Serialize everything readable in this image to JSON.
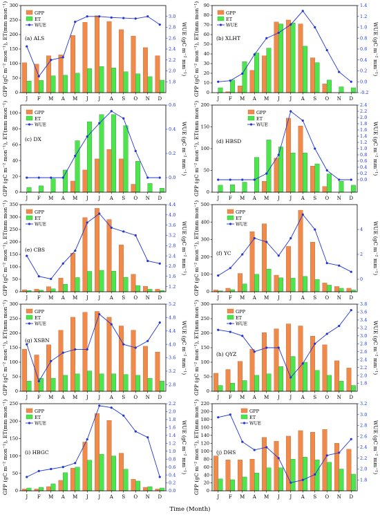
{
  "chart_data": [
    {
      "id": "als",
      "type": "bar",
      "panel_label": "(a) ALS",
      "categories": [
        "J",
        "F",
        "M",
        "A",
        "M",
        "J",
        "J",
        "A",
        "S",
        "O",
        "N",
        "D"
      ],
      "series": [
        {
          "name": "GPP",
          "values": [
            103,
            98,
            127,
            130,
            197,
            242,
            265,
            245,
            217,
            195,
            155,
            127
          ]
        },
        {
          "name": "ET",
          "values": [
            40,
            42,
            58,
            60,
            67,
            83,
            90,
            85,
            72,
            65,
            55,
            43
          ]
        },
        {
          "name": "WUE",
          "axis": "right",
          "values": [
            2.45,
            1.9,
            2.2,
            2.25,
            2.9,
            3.0,
            3.0,
            2.98,
            2.97,
            2.96,
            3.0,
            2.85
          ]
        }
      ],
      "ylabel": "GPP (gC m⁻² mon⁻¹), ET(mm mon⁻¹)",
      "y2label": "WUE (gC m⁻² mm⁻¹)",
      "ylim": [
        0,
        300
      ],
      "yticks": [
        0,
        50,
        100,
        150,
        200,
        250,
        300
      ],
      "y2lim": [
        1.6,
        3.2
      ],
      "y2ticks": [
        1.8,
        2.0,
        2.2,
        2.4,
        2.6,
        2.8,
        3.0
      ]
    },
    {
      "id": "xlht",
      "type": "bar",
      "panel_label": "(b) XLHT",
      "categories": [
        "J",
        "F",
        "M",
        "A",
        "M",
        "J",
        "J",
        "A",
        "S",
        "O",
        "N",
        "D"
      ],
      "series": [
        {
          "name": "GPP",
          "values": [
            0,
            1,
            7,
            23,
            38,
            73,
            75,
            71,
            36,
            9,
            0,
            0
          ]
        },
        {
          "name": "ET",
          "values": [
            5,
            13,
            32,
            41,
            46,
            71,
            72,
            48,
            31,
            13,
            6,
            5
          ]
        },
        {
          "name": "WUE",
          "axis": "right",
          "values": [
            0.0,
            0.02,
            0.15,
            0.5,
            0.8,
            0.9,
            1.05,
            1.3,
            1.0,
            0.58,
            0.18,
            0.0
          ]
        }
      ],
      "ylabel": "GPP (gC m⁻² mon⁻¹), ET(mm mon⁻¹)",
      "y2label": "WUE (gC m⁻² mm⁻¹)",
      "ylim": [
        0,
        90
      ],
      "yticks": [
        0,
        10,
        20,
        30,
        40,
        50,
        60,
        70,
        80,
        90
      ],
      "y2lim": [
        -0.2,
        1.4
      ],
      "y2ticks": [
        -0.2,
        0.0,
        0.2,
        0.4,
        0.6,
        0.8,
        1.0,
        1.2,
        1.4
      ]
    },
    {
      "id": "dx",
      "type": "bar",
      "panel_label": "(c) DX",
      "categories": [
        "J",
        "F",
        "M",
        "A",
        "M",
        "J",
        "J",
        "A",
        "S",
        "O",
        "N",
        "D"
      ],
      "series": [
        {
          "name": "GPP",
          "values": [
            0,
            0,
            0,
            0,
            14,
            28,
            42,
            54,
            42,
            10,
            0,
            0
          ]
        },
        {
          "name": "ET",
          "values": [
            6,
            8,
            17,
            28,
            65,
            89,
            98,
            98,
            84,
            39,
            11,
            5
          ]
        },
        {
          "name": "WUE",
          "axis": "right",
          "values": [
            0,
            0,
            0,
            0,
            0.18,
            0.34,
            0.45,
            0.55,
            0.49,
            0.22,
            0,
            0
          ]
        }
      ],
      "ylabel": "GPP (gC m⁻² mon⁻¹), ET(mm mon⁻¹)",
      "y2label": "WUE (gC m⁻² mm⁻¹)",
      "ylim": [
        0,
        110
      ],
      "yticks": [
        0,
        20,
        40,
        60,
        80,
        100
      ],
      "y2lim": [
        -0.12,
        0.6
      ],
      "y2ticks": [
        0.0,
        0.2,
        0.4,
        0.6
      ]
    },
    {
      "id": "hbsd",
      "type": "bar",
      "panel_label": "(d) HBSD",
      "categories": [
        "J",
        "F",
        "M",
        "A",
        "M",
        "J",
        "J",
        "A",
        "S",
        "O",
        "N",
        "D"
      ],
      "series": [
        {
          "name": "GPP",
          "values": [
            0,
            0,
            0,
            0,
            25,
            78,
            170,
            152,
            60,
            13,
            0,
            0
          ]
        },
        {
          "name": "ET",
          "values": [
            16,
            17,
            23,
            80,
            120,
            104,
            90,
            90,
            65,
            42,
            25,
            16
          ]
        },
        {
          "name": "WUE",
          "axis": "right",
          "values": [
            0,
            0,
            0,
            0,
            0.2,
            0.8,
            2.2,
            1.9,
            1.0,
            0.3,
            0,
            0
          ]
        }
      ],
      "ylabel": "GPP (gC m⁻² mon⁻¹), ET(mm mon⁻¹)",
      "y2label": "WUE (gC m⁻² mm⁻¹)",
      "ylim": [
        0,
        200
      ],
      "yticks": [
        0,
        50,
        100,
        150,
        200
      ],
      "y2lim": [
        -0.4,
        2.4
      ],
      "y2ticks": [
        0.0,
        0.2,
        0.4,
        0.6,
        0.8,
        1.0,
        1.2,
        1.4,
        1.6,
        1.8,
        2.0,
        2.2,
        2.4
      ]
    },
    {
      "id": "cbs",
      "type": "bar",
      "panel_label": "(e) CBS",
      "categories": [
        "J",
        "F",
        "M",
        "A",
        "M",
        "J",
        "J",
        "A",
        "S",
        "O",
        "N",
        "D"
      ],
      "series": [
        {
          "name": "GPP",
          "values": [
            8,
            10,
            20,
            55,
            155,
            298,
            335,
            290,
            188,
            70,
            22,
            10
          ]
        },
        {
          "name": "ET",
          "values": [
            5,
            6,
            12,
            30,
            57,
            82,
            86,
            83,
            58,
            25,
            10,
            5
          ]
        },
        {
          "name": "WUE",
          "axis": "right",
          "values": [
            2.4,
            1.6,
            1.5,
            2.1,
            2.6,
            3.7,
            4.05,
            3.5,
            3.35,
            3.2,
            2.2,
            2.1
          ]
        }
      ],
      "ylabel": "GPP (gC m⁻² mon⁻¹), ET(mm mon⁻¹)",
      "y2label": "WUE (gC m⁻² mm⁻¹)",
      "ylim": [
        0,
        350
      ],
      "yticks": [
        0,
        50,
        100,
        150,
        200,
        250,
        300,
        350
      ],
      "y2lim": [
        1.0,
        4.4
      ],
      "y2ticks": [
        1.2,
        1.6,
        2.0,
        2.4,
        2.8,
        3.2,
        3.6,
        4.0,
        4.4
      ]
    },
    {
      "id": "yc",
      "type": "bar",
      "panel_label": "(f) YC",
      "categories": [
        "J",
        "F",
        "M",
        "A",
        "M",
        "J",
        "J",
        "A",
        "S",
        "O",
        "N",
        "D"
      ],
      "series": [
        {
          "name": "GPP",
          "values": [
            10,
            20,
            105,
            345,
            390,
            95,
            260,
            468,
            285,
            50,
            30,
            20
          ]
        },
        {
          "name": "ET",
          "values": [
            5,
            12,
            45,
            100,
            130,
            80,
            78,
            88,
            70,
            38,
            20,
            10
          ]
        },
        {
          "name": "WUE",
          "axis": "right",
          "values": [
            0.3,
            0.9,
            2.0,
            3.3,
            3.0,
            1.9,
            3.3,
            5.2,
            4.0,
            1.3,
            1.1,
            0.6
          ]
        }
      ],
      "ylabel": "GPP (gC m⁻² mon⁻¹), ET(mm mon⁻¹)",
      "y2label": "WUE (gC m⁻² mm⁻¹)",
      "ylim": [
        0,
        500
      ],
      "yticks": [
        0,
        100,
        200,
        300,
        400,
        500
      ],
      "y2lim": [
        -1,
        6
      ],
      "y2ticks": [
        0,
        2,
        4
      ]
    },
    {
      "id": "xsbn",
      "type": "bar",
      "panel_label": "(g) XSBN",
      "categories": [
        "J",
        "F",
        "M",
        "A",
        "M",
        "J",
        "J",
        "A",
        "S",
        "O",
        "N",
        "D"
      ],
      "series": [
        {
          "name": "GPP",
          "values": [
            145,
            125,
            160,
            210,
            255,
            272,
            275,
            255,
            225,
            210,
            155,
            135
          ]
        },
        {
          "name": "ET",
          "values": [
            35,
            45,
            45,
            55,
            60,
            70,
            60,
            60,
            58,
            55,
            45,
            35
          ]
        },
        {
          "name": "WUE",
          "axis": "right",
          "values": [
            4.0,
            2.9,
            3.5,
            3.75,
            3.85,
            3.85,
            4.9,
            4.6,
            4.0,
            3.9,
            4.1,
            4.65
          ]
        }
      ],
      "ylabel": "GPP (gC m⁻² mon⁻¹), ET(mm mon⁻¹)",
      "y2label": "WUE (gC m⁻² mm⁻¹)",
      "ylim": [
        0,
        300
      ],
      "yticks": [
        0,
        50,
        100,
        150,
        200,
        250,
        300
      ],
      "y2lim": [
        2.6,
        5.2
      ],
      "y2ticks": [
        2.8,
        3.2,
        3.6,
        4.0,
        4.4,
        4.8,
        5.2
      ]
    },
    {
      "id": "qyz",
      "type": "bar",
      "panel_label": "(h) QYZ",
      "categories": [
        "J",
        "F",
        "M",
        "A",
        "M",
        "J",
        "J",
        "A",
        "S",
        "O",
        "N",
        "D"
      ],
      "series": [
        {
          "name": "GPP",
          "values": [
            62,
            75,
            103,
            145,
            202,
            215,
            232,
            225,
            190,
            160,
            105,
            80
          ]
        },
        {
          "name": "ET",
          "values": [
            20,
            28,
            37,
            55,
            60,
            85,
            120,
            100,
            72,
            55,
            35,
            20
          ]
        },
        {
          "name": "WUE",
          "axis": "right",
          "values": [
            3.15,
            3.1,
            3.0,
            2.6,
            2.7,
            2.7,
            1.95,
            2.3,
            2.8,
            3.05,
            3.25,
            3.65
          ]
        }
      ],
      "ylabel": "GPP (gC m⁻² mon⁻¹), ET(mm mon⁻¹)",
      "y2label": "WUE (gC m⁻² mm⁻¹)",
      "ylim": [
        0,
        300
      ],
      "yticks": [
        0,
        50,
        100,
        150,
        200,
        250,
        300
      ],
      "y2lim": [
        1.6,
        3.8
      ],
      "y2ticks": [
        1.8,
        2.0,
        2.2,
        2.4,
        2.6,
        2.8,
        3.0,
        3.2,
        3.4,
        3.6,
        3.8
      ]
    },
    {
      "id": "hbgc",
      "type": "bar",
      "panel_label": "(i) HBGC",
      "categories": [
        "J",
        "F",
        "M",
        "A",
        "M",
        "J",
        "J",
        "A",
        "S",
        "O",
        "N",
        "D"
      ],
      "series": [
        {
          "name": "GPP",
          "values": [
            5,
            5,
            12,
            30,
            65,
            140,
            222,
            202,
            108,
            33,
            10,
            5
          ]
        },
        {
          "name": "ET",
          "values": [
            8,
            10,
            20,
            52,
            68,
            88,
            105,
            100,
            62,
            28,
            12,
            8
          ]
        },
        {
          "name": "WUE",
          "axis": "right",
          "values": [
            0.35,
            0.5,
            0.55,
            0.6,
            0.7,
            1.3,
            2.15,
            2.1,
            1.9,
            1.5,
            1.35,
            0.35
          ]
        }
      ],
      "ylabel": "GPP (gC m⁻² mon⁻¹), ET(mm mon⁻¹)",
      "y2label": "WUE (gC m⁻² mm⁻¹)",
      "ylim": [
        0,
        250
      ],
      "yticks": [
        0,
        50,
        100,
        150,
        200,
        250
      ],
      "y2lim": [
        0,
        2.2
      ],
      "y2ticks": [
        0.0,
        0.2,
        0.4,
        0.6,
        0.8,
        1.0,
        1.2,
        1.4,
        1.6,
        1.8,
        2.0,
        2.2
      ]
    },
    {
      "id": "dhs",
      "type": "bar",
      "panel_label": "(j) DHS",
      "categories": [
        "J",
        "F",
        "M",
        "A",
        "M",
        "J",
        "J",
        "A",
        "S",
        "O",
        "N",
        "D"
      ],
      "series": [
        {
          "name": "GPP",
          "values": [
            88,
            78,
            78,
            80,
            135,
            125,
            138,
            152,
            148,
            155,
            120,
            105
          ]
        },
        {
          "name": "ET",
          "values": [
            30,
            28,
            35,
            45,
            58,
            58,
            80,
            85,
            78,
            72,
            55,
            42
          ]
        },
        {
          "name": "WUE",
          "axis": "right",
          "values": [
            2.95,
            3.0,
            2.5,
            2.35,
            2.4,
            2.2,
            1.75,
            1.8,
            1.9,
            2.25,
            2.3,
            2.55
          ]
        }
      ],
      "ylabel": "GPP (gC m⁻² mon⁻¹), ET(mm mon⁻¹)",
      "y2label": "WUE (gC m⁻² mm⁻¹)",
      "ylim": [
        0,
        220
      ],
      "yticks": [
        0,
        20,
        40,
        60,
        80,
        100,
        120,
        140,
        160,
        180,
        200,
        220
      ],
      "y2lim": [
        1.6,
        3.2
      ],
      "y2ticks": [
        1.8,
        2.0,
        2.2,
        2.4,
        2.6,
        2.8,
        3.0,
        3.2
      ]
    }
  ],
  "legend": {
    "gpp": "GPP",
    "et": "ET",
    "wue": "WUE"
  },
  "xlabel": "Time (Month)",
  "colors": {
    "gpp": "#f08a4b",
    "gpp_edge": "#c0602a",
    "et": "#4ee44e",
    "et_edge": "#2a9a2a",
    "wue": "#1f35d6"
  }
}
